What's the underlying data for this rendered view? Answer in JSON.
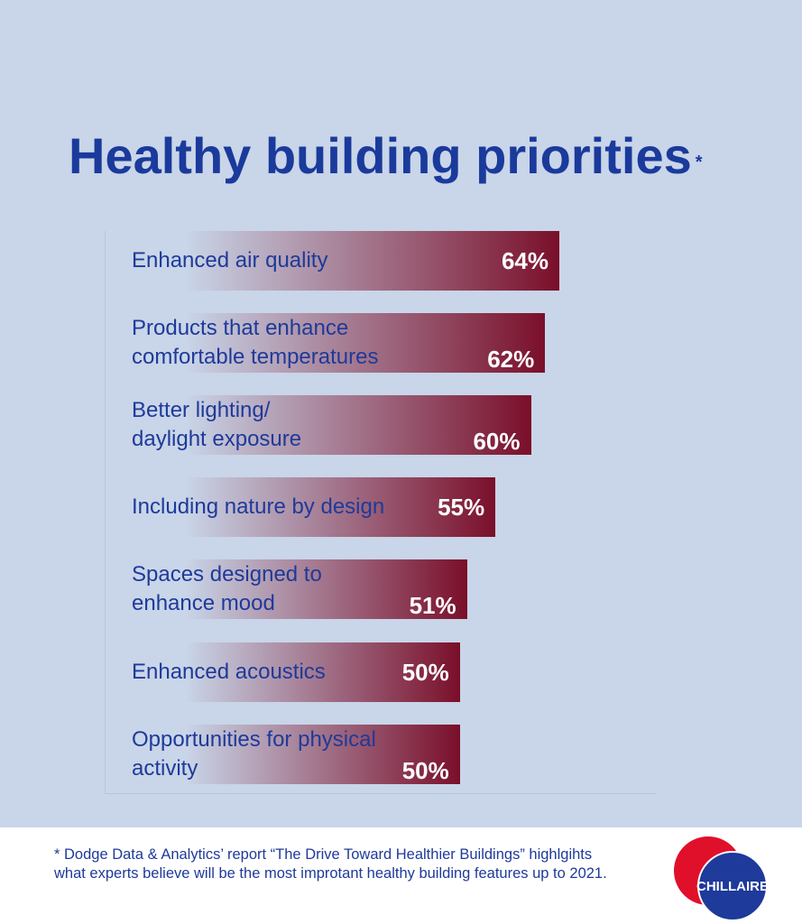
{
  "chart_data": {
    "type": "bar",
    "title": "Healthy building priorities",
    "title_mark": "*",
    "categories": [
      "Enhanced air quality",
      "Products that enhance\ncomfortable temperatures",
      "Better lighting/\ndaylight exposure",
      "Including nature by design",
      "Spaces designed to\nenhance mood",
      "Enhanced acoustics",
      "Opportunities for physical\nactivity"
    ],
    "values": [
      64,
      62,
      60,
      55,
      51,
      50,
      50
    ],
    "value_labels": [
      "64%",
      "62%",
      "60%",
      "55%",
      "51%",
      "50%",
      "50%"
    ],
    "color": "#7a0f2a"
  },
  "footnote": "* Dodge Data & Analytics’ report “The Drive Toward Healthier Buildings” highlgihts\nwhat experts believe will be the most improtant healthy building features up to 2021.",
  "logo": "CHILLAIRE"
}
